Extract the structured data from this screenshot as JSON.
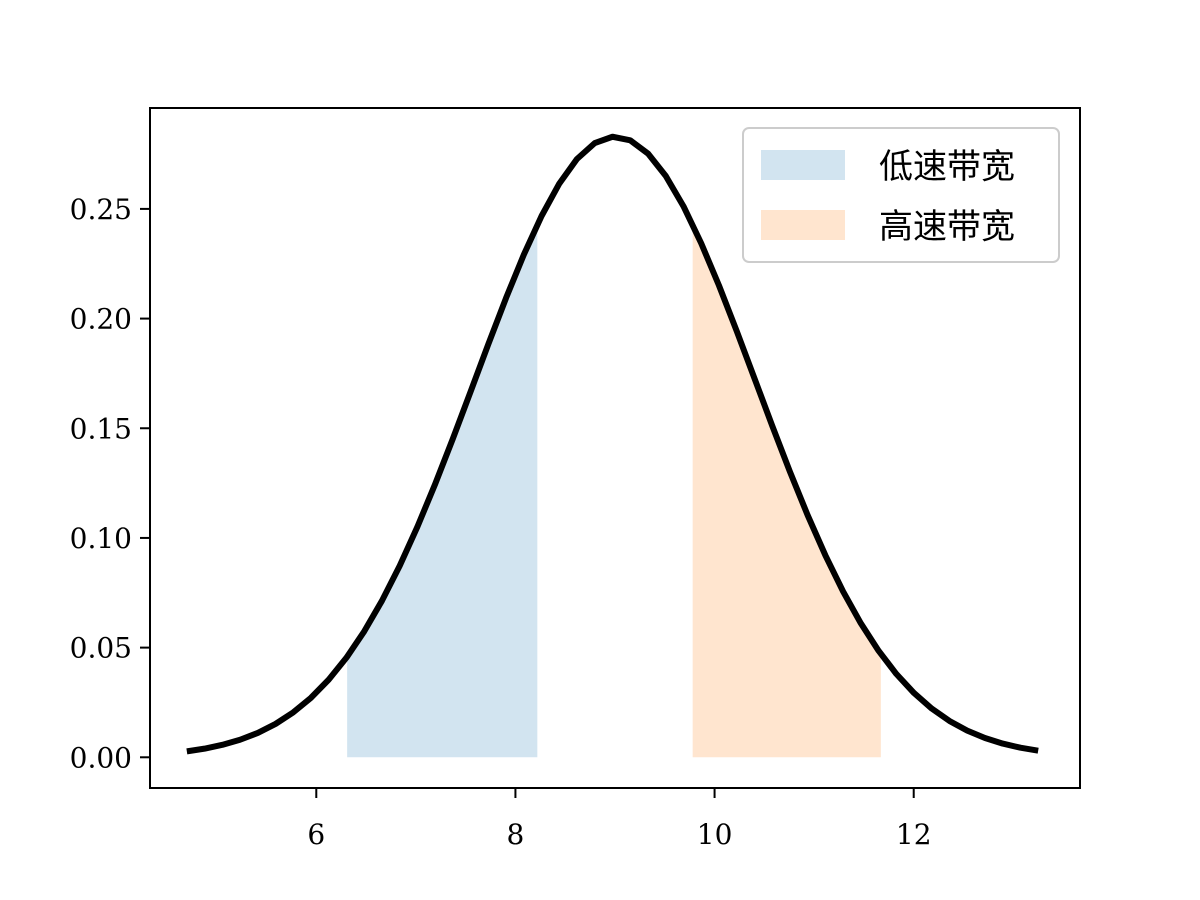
{
  "chart_data": {
    "type": "area",
    "title": "",
    "xlabel": "",
    "ylabel": "",
    "xlim": [
      4.33,
      13.67
    ],
    "ylim": [
      -0.014,
      0.296
    ],
    "grid": false,
    "legend_position": "top-right",
    "x_ticks": [
      {
        "value": 6,
        "label": "6"
      },
      {
        "value": 8,
        "label": "8"
      },
      {
        "value": 10,
        "label": "10"
      },
      {
        "value": 12,
        "label": "12"
      }
    ],
    "y_ticks": [
      {
        "value": 0.0,
        "label": "0.00"
      },
      {
        "value": 0.05,
        "label": "0.05"
      },
      {
        "value": 0.1,
        "label": "0.10"
      },
      {
        "value": 0.15,
        "label": "0.15"
      },
      {
        "value": 0.2,
        "label": "0.20"
      },
      {
        "value": 0.25,
        "label": "0.25"
      }
    ],
    "curve": {
      "distribution": "normal",
      "mean": 9.0,
      "std": 1.41,
      "x_range": [
        4.7,
        13.25
      ],
      "color": "#000000"
    },
    "series": [
      {
        "name": "低速带宽",
        "x_range": [
          6.31,
          8.22
        ],
        "color": "#1f77b4",
        "opacity": 0.2
      },
      {
        "name": "高速带宽",
        "x_range": [
          9.78,
          11.67
        ],
        "color": "#ff7f0e",
        "opacity": 0.2
      }
    ]
  }
}
